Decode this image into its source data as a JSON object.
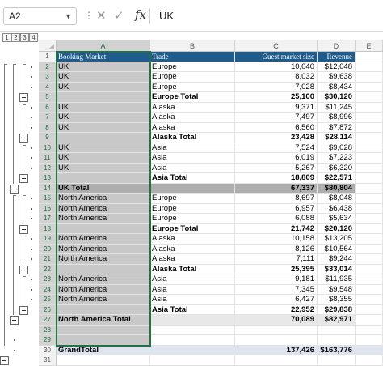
{
  "formula_bar": {
    "name_box": "A2",
    "fx": "fx",
    "value": "UK"
  },
  "outline_levels": [
    "1",
    "2",
    "3",
    "4"
  ],
  "columns": [
    "A",
    "B",
    "C",
    "D",
    "E"
  ],
  "header_row": {
    "row": "1",
    "cells": [
      "Booking Market",
      "Trade",
      "Guest market size",
      "Revenue",
      ""
    ]
  },
  "rows": [
    {
      "row": "2",
      "a": "UK",
      "b": "Europe",
      "c": "10,040",
      "d": "$12,048",
      "type": "data"
    },
    {
      "row": "3",
      "a": "UK",
      "b": "Europe",
      "c": "8,032",
      "d": "$9,638",
      "type": "data"
    },
    {
      "row": "4",
      "a": "UK",
      "b": "Europe",
      "c": "7,028",
      "d": "$8,434",
      "type": "data"
    },
    {
      "row": "5",
      "a": "",
      "b": "Europe Total",
      "c": "25,100",
      "d": "$30,120",
      "type": "sub"
    },
    {
      "row": "6",
      "a": "UK",
      "b": "Alaska",
      "c": "9,371",
      "d": "$11,245",
      "type": "data"
    },
    {
      "row": "7",
      "a": "UK",
      "b": "Alaska",
      "c": "7,497",
      "d": "$8,996",
      "type": "data"
    },
    {
      "row": "8",
      "a": "UK",
      "b": "Alaska",
      "c": "6,560",
      "d": "$7,872",
      "type": "data"
    },
    {
      "row": "9",
      "a": "",
      "b": "Alaska Total",
      "c": "23,428",
      "d": "$28,114",
      "type": "sub"
    },
    {
      "row": "10",
      "a": "UK",
      "b": "Asia",
      "c": "7,524",
      "d": "$9,028",
      "type": "data"
    },
    {
      "row": "11",
      "a": "UK",
      "b": "Asia",
      "c": "6,019",
      "d": "$7,223",
      "type": "data"
    },
    {
      "row": "12",
      "a": "UK",
      "b": "Asia",
      "c": "5,267",
      "d": "$6,320",
      "type": "data"
    },
    {
      "row": "13",
      "a": "",
      "b": "Asia Total",
      "c": "18,809",
      "d": "$22,571",
      "type": "sub"
    },
    {
      "row": "14",
      "a": "UK Total",
      "b": "",
      "c": "67,337",
      "d": "$80,804",
      "type": "mtot"
    },
    {
      "row": "15",
      "a": "North America",
      "b": "Europe",
      "c": "8,697",
      "d": "$8,048",
      "type": "data"
    },
    {
      "row": "16",
      "a": "North America",
      "b": "Europe",
      "c": "6,957",
      "d": "$6,438",
      "type": "data"
    },
    {
      "row": "17",
      "a": "North America",
      "b": "Europe",
      "c": "6,088",
      "d": "$5,634",
      "type": "data"
    },
    {
      "row": "18",
      "a": "",
      "b": "Europe Total",
      "c": "21,742",
      "d": "$20,120",
      "type": "sub"
    },
    {
      "row": "19",
      "a": "North America",
      "b": "Alaska",
      "c": "10,158",
      "d": "$13,205",
      "type": "data"
    },
    {
      "row": "20",
      "a": "North America",
      "b": "Alaska",
      "c": "8,126",
      "d": "$10,564",
      "type": "data"
    },
    {
      "row": "21",
      "a": "North America",
      "b": "Alaska",
      "c": "7,111",
      "d": "$9,244",
      "type": "data"
    },
    {
      "row": "22",
      "a": "",
      "b": "Alaska Total",
      "c": "25,395",
      "d": "$33,014",
      "type": "sub"
    },
    {
      "row": "23",
      "a": "North America",
      "b": "Asia",
      "c": "9,181",
      "d": "$11,935",
      "type": "data"
    },
    {
      "row": "24",
      "a": "North America",
      "b": "Asia",
      "c": "7,345",
      "d": "$9,548",
      "type": "data"
    },
    {
      "row": "25",
      "a": "North America",
      "b": "Asia",
      "c": "6,427",
      "d": "$8,355",
      "type": "data"
    },
    {
      "row": "26",
      "a": "",
      "b": "Asia Total",
      "c": "22,952",
      "d": "$29,838",
      "type": "sub"
    },
    {
      "row": "27",
      "a": "North America Total",
      "b": "",
      "c": "70,089",
      "d": "$82,971",
      "type": "ntot"
    },
    {
      "row": "28",
      "a": "",
      "b": "",
      "c": "",
      "d": "",
      "type": "blank"
    },
    {
      "row": "29",
      "a": "",
      "b": "",
      "c": "",
      "d": "",
      "type": "blank"
    },
    {
      "row": "30",
      "a": "GrandTotal",
      "b": "",
      "c": "137,426",
      "d": "$163,776",
      "type": "gt"
    },
    {
      "row": "31",
      "a": "",
      "b": "",
      "c": "",
      "d": "",
      "type": "blank"
    }
  ]
}
